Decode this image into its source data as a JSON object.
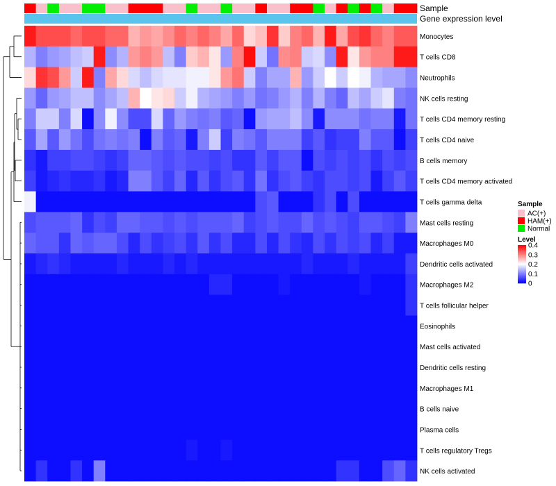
{
  "chart_data": {
    "type": "heatmap",
    "title": "",
    "annotation_tracks": [
      {
        "label": "Sample",
        "key": "sample"
      },
      {
        "label": "Gene expression level",
        "key": "expression_group",
        "color": "#5bc4ec"
      }
    ],
    "sample_groups": [
      "HAM(+)",
      "AC(+)",
      "Normal",
      "AC(+)",
      "AC(+)",
      "Normal",
      "Normal",
      "AC(+)",
      "AC(+)",
      "HAM(+)",
      "HAM(+)",
      "HAM(+)",
      "AC(+)",
      "AC(+)",
      "Normal",
      "AC(+)",
      "AC(+)",
      "Normal",
      "AC(+)",
      "AC(+)",
      "HAM(+)",
      "AC(+)",
      "AC(+)",
      "HAM(+)",
      "HAM(+)",
      "Normal",
      "AC(+)",
      "HAM(+)",
      "Normal",
      "HAM(+)",
      "Normal",
      "AC(+)",
      "HAM(+)",
      "HAM(+)"
    ],
    "rows": [
      {
        "label": "Monocytes",
        "values": [
          0.38,
          0.34,
          0.34,
          0.34,
          0.32,
          0.34,
          0.34,
          0.32,
          0.32,
          0.26,
          0.28,
          0.27,
          0.29,
          0.32,
          0.3,
          0.32,
          0.3,
          0.27,
          0.32,
          0.23,
          0.25,
          0.36,
          0.24,
          0.3,
          0.32,
          0.26,
          0.38,
          0.27,
          0.34,
          0.36,
          0.32,
          0.3,
          0.33,
          0.33
        ]
      },
      {
        "label": "T cells CD8",
        "values": [
          0.14,
          0.1,
          0.12,
          0.13,
          0.15,
          0.16,
          0.38,
          0.11,
          0.14,
          0.28,
          0.3,
          0.28,
          0.15,
          0.1,
          0.24,
          0.26,
          0.22,
          0.12,
          0.3,
          0.39,
          0.16,
          0.09,
          0.29,
          0.3,
          0.16,
          0.17,
          0.11,
          0.38,
          0.22,
          0.28,
          0.3,
          0.3,
          0.38,
          0.38
        ]
      },
      {
        "label": "Neutrophils",
        "values": [
          0.23,
          0.36,
          0.34,
          0.28,
          0.16,
          0.38,
          0.1,
          0.27,
          0.23,
          0.17,
          0.15,
          0.17,
          0.18,
          0.18,
          0.19,
          0.19,
          0.22,
          0.28,
          0.31,
          0.16,
          0.1,
          0.13,
          0.13,
          0.26,
          0.12,
          0.16,
          0.2,
          0.16,
          0.2,
          0.19,
          0.14,
          0.13,
          0.13,
          0.11
        ]
      },
      {
        "label": "NK cells resting",
        "values": [
          0.12,
          0.08,
          0.12,
          0.13,
          0.15,
          0.15,
          0.11,
          0.13,
          0.15,
          0.26,
          0.2,
          0.22,
          0.23,
          0.16,
          0.19,
          0.14,
          0.13,
          0.12,
          0.1,
          0.12,
          0.09,
          0.1,
          0.12,
          0.14,
          0.1,
          0.14,
          0.1,
          0.08,
          0.15,
          0.13,
          0.16,
          0.18,
          0.1,
          0.09
        ]
      },
      {
        "label": "T cells CD4 memory resting",
        "values": [
          0.1,
          0.16,
          0.16,
          0.1,
          0.17,
          0.01,
          0.11,
          0.19,
          0.11,
          0.06,
          0.06,
          0.17,
          0.08,
          0.12,
          0.1,
          0.09,
          0.1,
          0.07,
          0.08,
          0.01,
          0.12,
          0.13,
          0.13,
          0.15,
          0.11,
          0.02,
          0.11,
          0.11,
          0.11,
          0.09,
          0.1,
          0.1,
          0.02,
          0.09
        ]
      },
      {
        "label": "T cells CD4 naive",
        "values": [
          0.07,
          0.13,
          0.07,
          0.12,
          0.09,
          0.06,
          0.09,
          0.1,
          0.09,
          0.1,
          0.01,
          0.1,
          0.07,
          0.08,
          0.02,
          0.1,
          0.16,
          0.05,
          0.1,
          0.09,
          0.07,
          0.1,
          0.1,
          0.1,
          0.05,
          0.07,
          0.04,
          0.05,
          0.05,
          0.1,
          0.07,
          0.07,
          0.01,
          0.05
        ]
      },
      {
        "label": "B cells memory",
        "values": [
          0.04,
          0.02,
          0.05,
          0.05,
          0.06,
          0.06,
          0.05,
          0.04,
          0.05,
          0.08,
          0.08,
          0.07,
          0.06,
          0.07,
          0.06,
          0.06,
          0.05,
          0.06,
          0.04,
          0.04,
          0.07,
          0.05,
          0.07,
          0.07,
          0.01,
          0.06,
          0.05,
          0.06,
          0.05,
          0.06,
          0.04,
          0.06,
          0.05,
          0.06
        ]
      },
      {
        "label": "T cells CD4 memory activated",
        "values": [
          0.05,
          0.02,
          0.03,
          0.04,
          0.03,
          0.03,
          0.04,
          0.02,
          0.03,
          0.1,
          0.1,
          0.07,
          0.05,
          0.08,
          0.03,
          0.07,
          0.04,
          0.06,
          0.07,
          0.04,
          0.09,
          0.04,
          0.06,
          0.07,
          0.05,
          0.04,
          0.06,
          0.06,
          0.05,
          0.06,
          0.02,
          0.05,
          0.07,
          0.05
        ]
      },
      {
        "label": "T cells gamma delta",
        "values": [
          0.19,
          0.01,
          0.01,
          0.01,
          0.01,
          0.01,
          0.01,
          0.01,
          0.01,
          0.01,
          0.01,
          0.01,
          0.01,
          0.01,
          0.01,
          0.01,
          0.01,
          0.01,
          0.01,
          0.01,
          0.06,
          0.07,
          0.01,
          0.01,
          0.01,
          0.04,
          0.06,
          0.01,
          0.06,
          0.01,
          0.01,
          0.01,
          0.01,
          0.01
        ]
      },
      {
        "label": "Mast cells resting",
        "values": [
          0.06,
          0.07,
          0.07,
          0.07,
          0.08,
          0.04,
          0.06,
          0.05,
          0.08,
          0.08,
          0.07,
          0.07,
          0.06,
          0.07,
          0.06,
          0.07,
          0.07,
          0.07,
          0.08,
          0.05,
          0.06,
          0.07,
          0.06,
          0.06,
          0.08,
          0.06,
          0.07,
          0.06,
          0.05,
          0.07,
          0.07,
          0.06,
          0.05,
          0.1
        ]
      },
      {
        "label": "Macrophages M0",
        "values": [
          0.08,
          0.07,
          0.07,
          0.04,
          0.08,
          0.07,
          0.08,
          0.08,
          0.06,
          0.03,
          0.06,
          0.04,
          0.05,
          0.06,
          0.04,
          0.07,
          0.04,
          0.06,
          0.03,
          0.03,
          0.06,
          0.03,
          0.06,
          0.04,
          0.03,
          0.06,
          0.04,
          0.06,
          0.05,
          0.06,
          0.03,
          0.05,
          0.02,
          0.02
        ]
      },
      {
        "label": "Dendritic cells activated",
        "values": [
          0.02,
          0.03,
          0.04,
          0.03,
          0.02,
          0.02,
          0.02,
          0.02,
          0.03,
          0.02,
          0.02,
          0.02,
          0.03,
          0.02,
          0.03,
          0.02,
          0.02,
          0.02,
          0.02,
          0.02,
          0.02,
          0.02,
          0.02,
          0.02,
          0.03,
          0.02,
          0.02,
          0.02,
          0.03,
          0.02,
          0.02,
          0.02,
          0.02,
          0.05
        ]
      },
      {
        "label": "Macrophages M2",
        "values": [
          0.01,
          0.01,
          0.01,
          0.01,
          0.01,
          0.01,
          0.01,
          0.01,
          0.01,
          0.01,
          0.01,
          0.01,
          0.01,
          0.01,
          0.01,
          0.01,
          0.03,
          0.03,
          0.01,
          0.01,
          0.01,
          0.01,
          0.02,
          0.01,
          0.01,
          0.01,
          0.01,
          0.01,
          0.01,
          0.02,
          0.01,
          0.01,
          0.01,
          0.04
        ]
      },
      {
        "label": "T cells follicular helper",
        "values": [
          0.01,
          0.01,
          0.01,
          0.01,
          0.01,
          0.01,
          0.01,
          0.01,
          0.01,
          0.01,
          0.01,
          0.01,
          0.01,
          0.01,
          0.01,
          0.01,
          0.01,
          0.01,
          0.01,
          0.01,
          0.01,
          0.01,
          0.01,
          0.01,
          0.01,
          0.01,
          0.01,
          0.01,
          0.01,
          0.01,
          0.01,
          0.01,
          0.01,
          0.04
        ]
      },
      {
        "label": "Eosinophils",
        "values": [
          0.01,
          0.01,
          0.01,
          0.01,
          0.01,
          0.01,
          0.01,
          0.01,
          0.01,
          0.01,
          0.01,
          0.01,
          0.01,
          0.01,
          0.01,
          0.01,
          0.01,
          0.01,
          0.01,
          0.01,
          0.01,
          0.01,
          0.01,
          0.01,
          0.01,
          0.01,
          0.01,
          0.01,
          0.01,
          0.01,
          0.01,
          0.01,
          0.01,
          0.01
        ]
      },
      {
        "label": "Mast cells activated",
        "values": [
          0.01,
          0.01,
          0.01,
          0.01,
          0.01,
          0.01,
          0.01,
          0.01,
          0.01,
          0.01,
          0.01,
          0.01,
          0.01,
          0.01,
          0.01,
          0.01,
          0.01,
          0.01,
          0.01,
          0.01,
          0.01,
          0.01,
          0.01,
          0.01,
          0.01,
          0.01,
          0.01,
          0.01,
          0.01,
          0.01,
          0.01,
          0.01,
          0.01,
          0.01
        ]
      },
      {
        "label": "Dendritic cells resting",
        "values": [
          0.01,
          0.01,
          0.01,
          0.01,
          0.01,
          0.01,
          0.01,
          0.01,
          0.01,
          0.01,
          0.01,
          0.01,
          0.01,
          0.01,
          0.01,
          0.01,
          0.01,
          0.01,
          0.01,
          0.01,
          0.01,
          0.01,
          0.01,
          0.01,
          0.01,
          0.01,
          0.01,
          0.01,
          0.01,
          0.01,
          0.01,
          0.01,
          0.01,
          0.01
        ]
      },
      {
        "label": "Macrophages M1",
        "values": [
          0.01,
          0.01,
          0.01,
          0.01,
          0.01,
          0.01,
          0.01,
          0.01,
          0.01,
          0.01,
          0.01,
          0.01,
          0.01,
          0.01,
          0.01,
          0.01,
          0.01,
          0.01,
          0.01,
          0.01,
          0.01,
          0.01,
          0.01,
          0.01,
          0.01,
          0.01,
          0.01,
          0.01,
          0.01,
          0.01,
          0.01,
          0.01,
          0.01,
          0.01
        ]
      },
      {
        "label": "B cells naive",
        "values": [
          0.01,
          0.01,
          0.01,
          0.01,
          0.01,
          0.01,
          0.01,
          0.01,
          0.01,
          0.01,
          0.01,
          0.01,
          0.01,
          0.01,
          0.01,
          0.01,
          0.01,
          0.01,
          0.01,
          0.01,
          0.01,
          0.01,
          0.01,
          0.01,
          0.01,
          0.01,
          0.01,
          0.01,
          0.01,
          0.01,
          0.01,
          0.01,
          0.01,
          0.01
        ]
      },
      {
        "label": "Plasma cells",
        "values": [
          0.01,
          0.01,
          0.01,
          0.01,
          0.01,
          0.01,
          0.01,
          0.01,
          0.01,
          0.01,
          0.01,
          0.01,
          0.01,
          0.01,
          0.01,
          0.01,
          0.01,
          0.01,
          0.01,
          0.01,
          0.01,
          0.01,
          0.01,
          0.01,
          0.01,
          0.01,
          0.01,
          0.01,
          0.01,
          0.01,
          0.01,
          0.01,
          0.01,
          0.01
        ]
      },
      {
        "label": "T cells regulatory  Tregs",
        "values": [
          0.01,
          0.01,
          0.01,
          0.01,
          0.01,
          0.01,
          0.01,
          0.01,
          0.01,
          0.01,
          0.01,
          0.01,
          0.01,
          0.01,
          0.02,
          0.01,
          0.01,
          0.02,
          0.01,
          0.01,
          0.01,
          0.01,
          0.01,
          0.01,
          0.01,
          0.01,
          0.01,
          0.01,
          0.01,
          0.01,
          0.01,
          0.01,
          0.01,
          0.01
        ]
      },
      {
        "label": "NK cells activated",
        "values": [
          0.01,
          0.04,
          0.01,
          0.01,
          0.04,
          0.01,
          0.1,
          0.01,
          0.01,
          0.01,
          0.01,
          0.01,
          0.01,
          0.01,
          0.01,
          0.01,
          0.01,
          0.01,
          0.01,
          0.01,
          0.01,
          0.01,
          0.01,
          0.01,
          0.01,
          0.01,
          0.01,
          0.04,
          0.04,
          0.01,
          0.01,
          0.06,
          0.08,
          0.04
        ]
      }
    ],
    "legend_sample": {
      "title": "Sample",
      "items": [
        {
          "label": "AC(+)",
          "color": "#f9c0cb"
        },
        {
          "label": "HAM(+)",
          "color": "#ff0000"
        },
        {
          "label": "Normal",
          "color": "#00ee00"
        }
      ]
    },
    "legend_level": {
      "title": "Level",
      "range": [
        0,
        0.4
      ],
      "ticks": [
        {
          "value": 0.4,
          "label": "0.4"
        },
        {
          "value": 0.3,
          "label": "0.3"
        },
        {
          "value": 0.2,
          "label": "0.2"
        },
        {
          "value": 0.1,
          "label": "0.1"
        },
        {
          "value": 0,
          "label": "0"
        }
      ],
      "colors": {
        "low": "#0000ff",
        "mid": "#ffffff",
        "high": "#ff0000"
      }
    }
  }
}
